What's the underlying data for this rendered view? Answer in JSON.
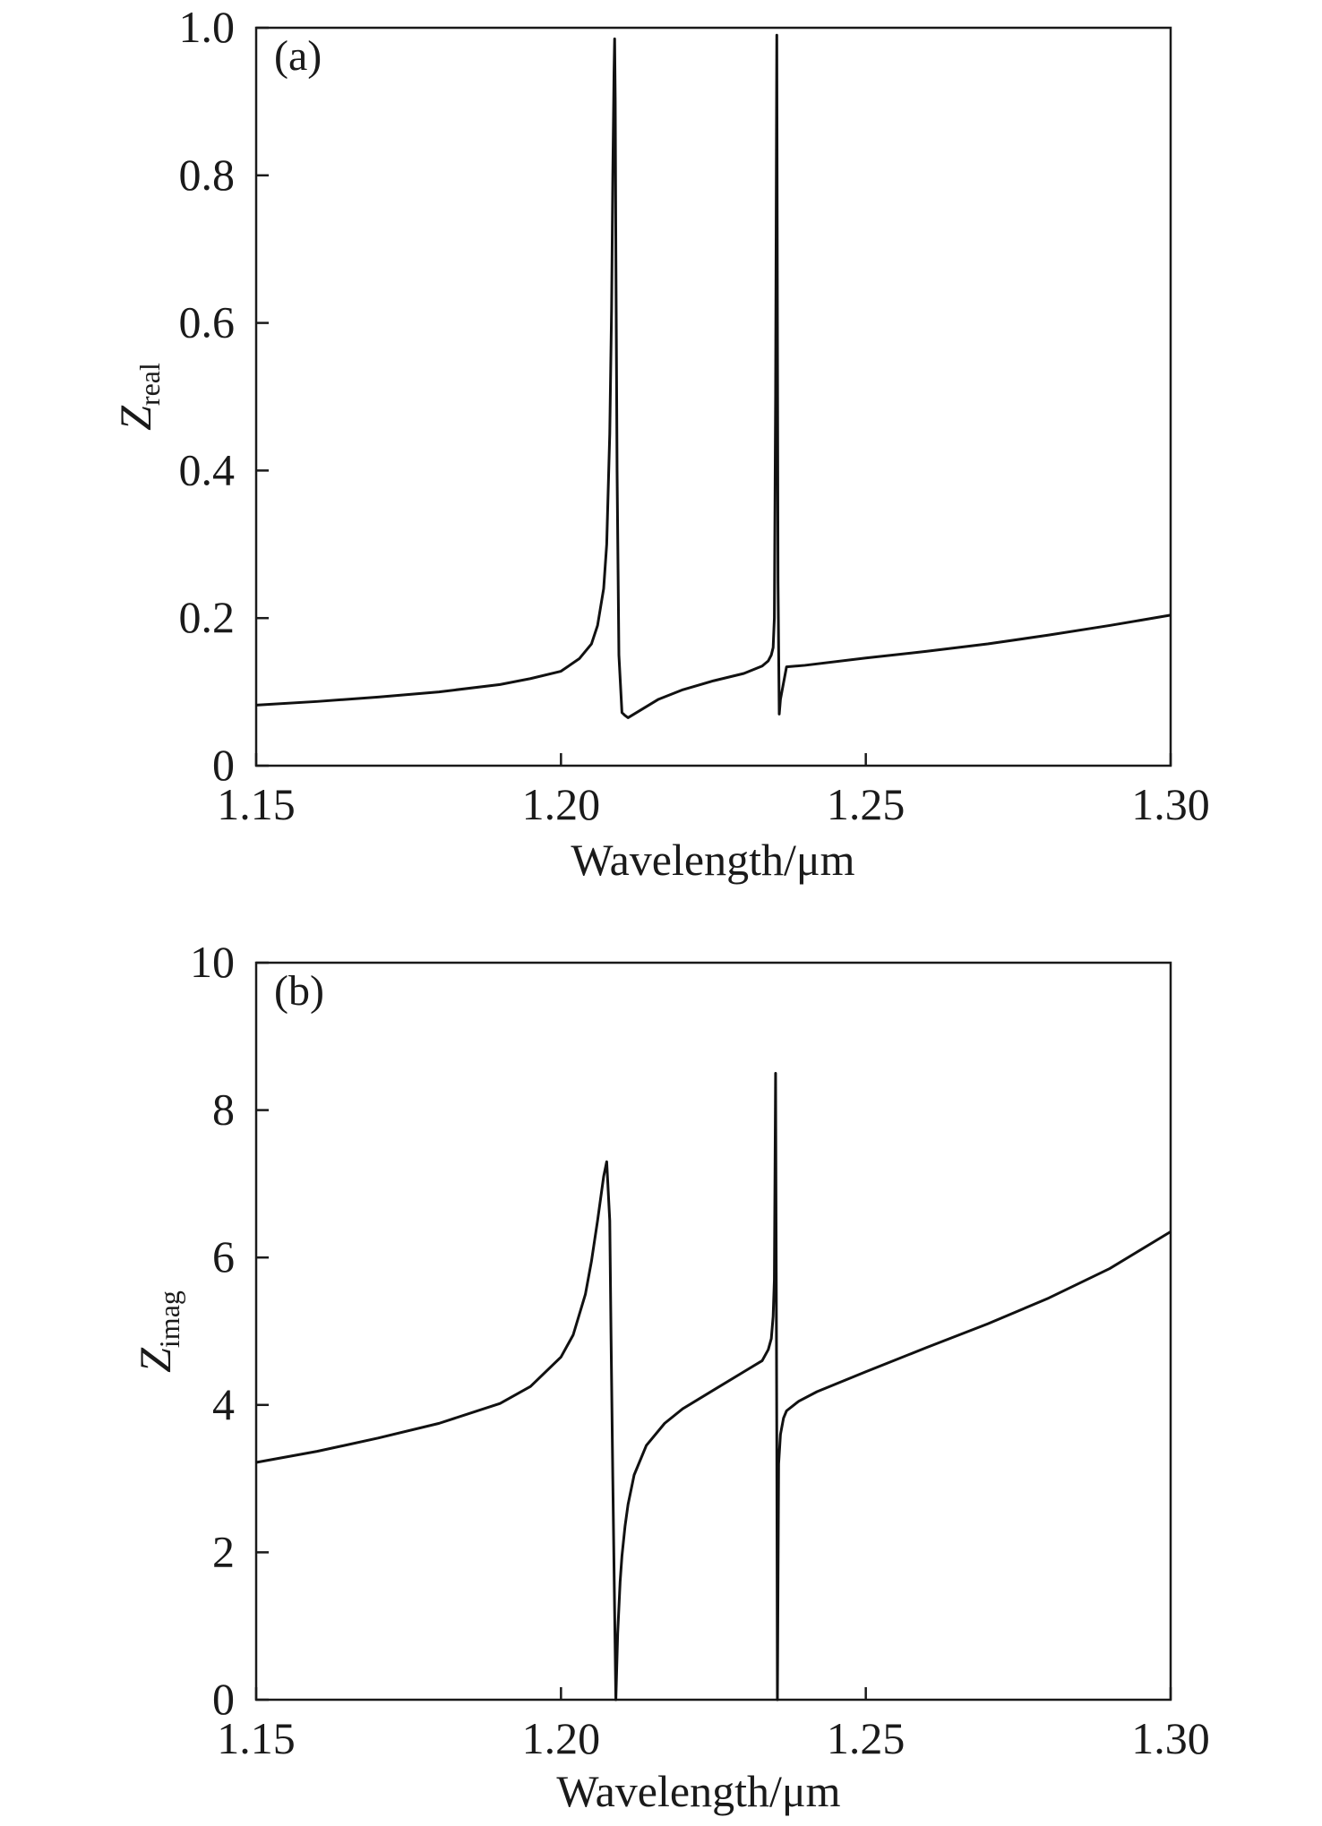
{
  "chart_data": [
    {
      "type": "line",
      "panel_label": "(a)",
      "xlabel": "Wavelength/μm",
      "ylabel_main": "Z",
      "ylabel_sub": "real",
      "xlim": [
        1.15,
        1.3
      ],
      "ylim": [
        0,
        1.0
      ],
      "xticks": [
        1.15,
        1.2,
        1.25,
        1.3
      ],
      "xtick_labels": [
        "1.15",
        "1.20",
        "1.25",
        "1.30"
      ],
      "yticks": [
        0,
        0.2,
        0.4,
        0.6,
        0.8,
        1.0
      ],
      "ytick_labels": [
        "0",
        "0.2",
        "0.4",
        "0.6",
        "0.8",
        "1.0"
      ],
      "grid": false,
      "series": [
        {
          "color": "#111111",
          "x": [
            1.15,
            1.16,
            1.17,
            1.18,
            1.19,
            1.195,
            1.2,
            1.203,
            1.205,
            1.206,
            1.207,
            1.2075,
            1.208,
            1.2083,
            1.2085,
            1.2087,
            1.2088,
            1.2089,
            1.209,
            1.2092,
            1.2095,
            1.21,
            1.2105,
            1.211,
            1.213,
            1.216,
            1.22,
            1.225,
            1.23,
            1.233,
            1.234,
            1.2345,
            1.2348,
            1.235,
            1.2352,
            1.2354,
            1.2355,
            1.2356,
            1.2358,
            1.236,
            1.237,
            1.24,
            1.25,
            1.26,
            1.27,
            1.28,
            1.29,
            1.3
          ],
          "y": [
            0.082,
            0.087,
            0.093,
            0.1,
            0.11,
            0.118,
            0.128,
            0.145,
            0.165,
            0.19,
            0.24,
            0.3,
            0.45,
            0.62,
            0.8,
            0.94,
            0.985,
            0.9,
            0.7,
            0.4,
            0.15,
            0.072,
            0.068,
            0.065,
            0.075,
            0.09,
            0.103,
            0.115,
            0.125,
            0.135,
            0.142,
            0.15,
            0.16,
            0.2,
            0.5,
            0.99,
            0.6,
            0.25,
            0.07,
            0.09,
            0.134,
            0.136,
            0.146,
            0.155,
            0.165,
            0.177,
            0.19,
            0.204
          ]
        }
      ]
    },
    {
      "type": "line",
      "panel_label": "(b)",
      "xlabel": "Wavelength/μm",
      "ylabel_main": "Z",
      "ylabel_sub": "imag",
      "xlim": [
        1.15,
        1.3
      ],
      "ylim": [
        0,
        10
      ],
      "xticks": [
        1.15,
        1.2,
        1.25,
        1.3
      ],
      "xtick_labels": [
        "1.15",
        "1.20",
        "1.25",
        "1.30"
      ],
      "yticks": [
        0,
        2,
        4,
        6,
        8,
        10
      ],
      "ytick_labels": [
        "0",
        "2",
        "4",
        "6",
        "8",
        "10"
      ],
      "grid": false,
      "series": [
        {
          "color": "#111111",
          "x": [
            1.15,
            1.16,
            1.17,
            1.18,
            1.19,
            1.195,
            1.2,
            1.202,
            1.204,
            1.205,
            1.206,
            1.207,
            1.2075,
            1.208,
            1.2082,
            1.2085,
            1.2088,
            1.209,
            1.2093,
            1.2097,
            1.21,
            1.2105,
            1.211,
            1.212,
            1.214,
            1.217,
            1.22,
            1.225,
            1.23,
            1.233,
            1.234,
            1.2345,
            1.2348,
            1.235,
            1.2352,
            1.2353,
            1.2354,
            1.2355,
            1.2357,
            1.236,
            1.2365,
            1.237,
            1.239,
            1.242,
            1.25,
            1.26,
            1.27,
            1.28,
            1.29,
            1.3
          ],
          "y": [
            3.22,
            3.37,
            3.55,
            3.75,
            4.02,
            4.25,
            4.65,
            4.95,
            5.5,
            5.95,
            6.5,
            7.1,
            7.3,
            6.5,
            5.0,
            3.0,
            1.2,
            0.0,
            0.9,
            1.6,
            1.95,
            2.35,
            2.65,
            3.05,
            3.45,
            3.75,
            3.95,
            4.2,
            4.45,
            4.6,
            4.75,
            4.9,
            5.2,
            5.7,
            8.5,
            6.0,
            3.5,
            0.0,
            3.2,
            3.6,
            3.82,
            3.92,
            4.05,
            4.18,
            4.45,
            4.78,
            5.1,
            5.45,
            5.85,
            6.35
          ]
        }
      ]
    }
  ]
}
